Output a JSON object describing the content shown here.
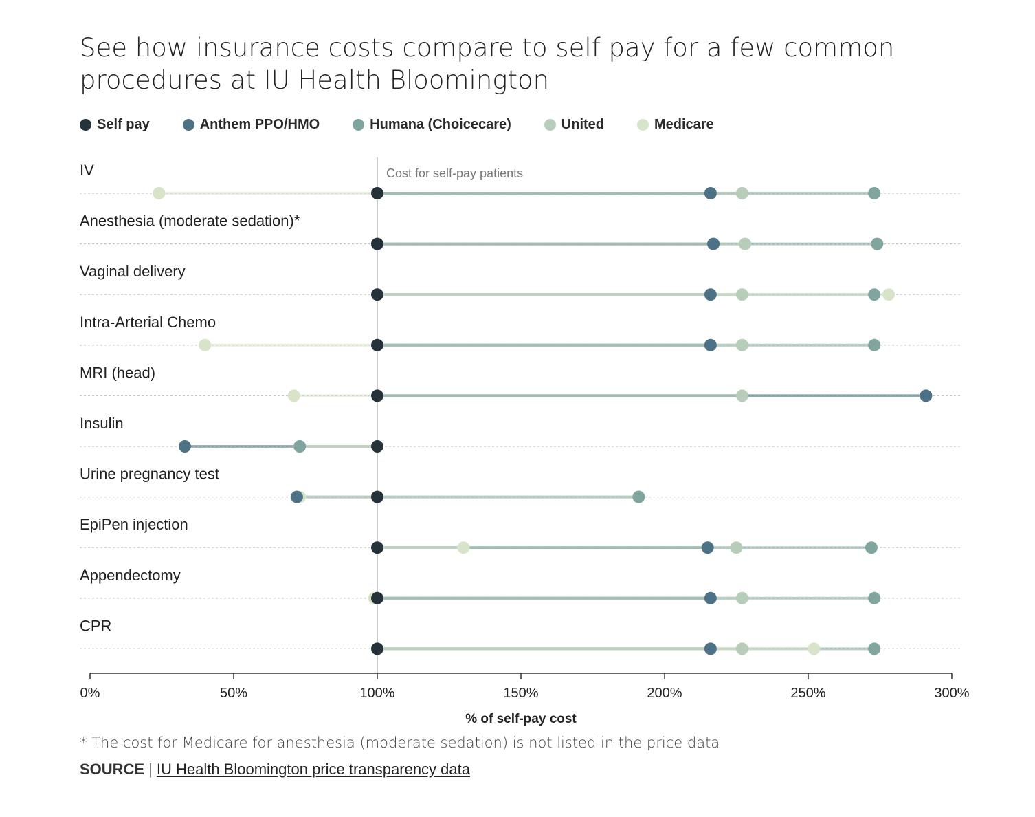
{
  "title": "See how insurance costs compare to self pay for a few common procedures at IU Health Bloomington",
  "legend": [
    {
      "name": "Self pay",
      "color": "#253239"
    },
    {
      "name": "Anthem PPO/HMO",
      "color": "#4e7285"
    },
    {
      "name": "Humana (Choicecare)",
      "color": "#7fa59e"
    },
    {
      "name": "United",
      "color": "#b8ccba"
    },
    {
      "name": "Medicare",
      "color": "#d7e4c9"
    }
  ],
  "chart_data": {
    "type": "dot-range",
    "title": "See how insurance costs compare to self pay for a few common procedures at IU Health Bloomington",
    "xlabel": "% of self-pay cost",
    "xlim": [
      0,
      300
    ],
    "xticks": [
      0,
      50,
      100,
      150,
      200,
      250,
      300
    ],
    "xtick_labels": [
      "0%",
      "50%",
      "100%",
      "150%",
      "200%",
      "250%",
      "300%"
    ],
    "reference_line": {
      "value": 100,
      "label": "Cost for self-pay patients"
    },
    "grid": "dotted horizontal row lines",
    "legend_position": "top",
    "series_order": [
      "Self pay",
      "Anthem PPO/HMO",
      "Humana (Choicecare)",
      "United",
      "Medicare"
    ],
    "categories": [
      "IV",
      "Anesthesia (moderate sedation)*",
      "Vaginal delivery",
      "Intra-Arterial Chemo",
      "MRI (head)",
      "Insulin",
      "Urine pregnancy test",
      "EpiPen injection",
      "Appendectomy",
      "CPR"
    ],
    "series": [
      {
        "name": "Self pay",
        "values": [
          100,
          100,
          100,
          100,
          100,
          100,
          100,
          100,
          100,
          100
        ]
      },
      {
        "name": "Anthem PPO/HMO",
        "values": [
          216,
          217,
          216,
          216,
          291,
          33,
          72,
          215,
          216,
          216
        ]
      },
      {
        "name": "Humana (Choicecare)",
        "values": [
          273,
          274,
          273,
          273,
          291,
          73,
          191,
          272,
          273,
          273
        ]
      },
      {
        "name": "United",
        "values": [
          227,
          228,
          227,
          227,
          227,
          73,
          191,
          225,
          227,
          227
        ]
      },
      {
        "name": "Medicare",
        "values": [
          24,
          null,
          278,
          40,
          71,
          73,
          73,
          130,
          99,
          252
        ]
      }
    ]
  },
  "footnote": "* The cost for Medicare for anesthesia (moderate sedation) is not listed in the price data",
  "source": {
    "label": "SOURCE",
    "separator": "|",
    "link_text": "IU Health Bloomington price transparency data"
  }
}
